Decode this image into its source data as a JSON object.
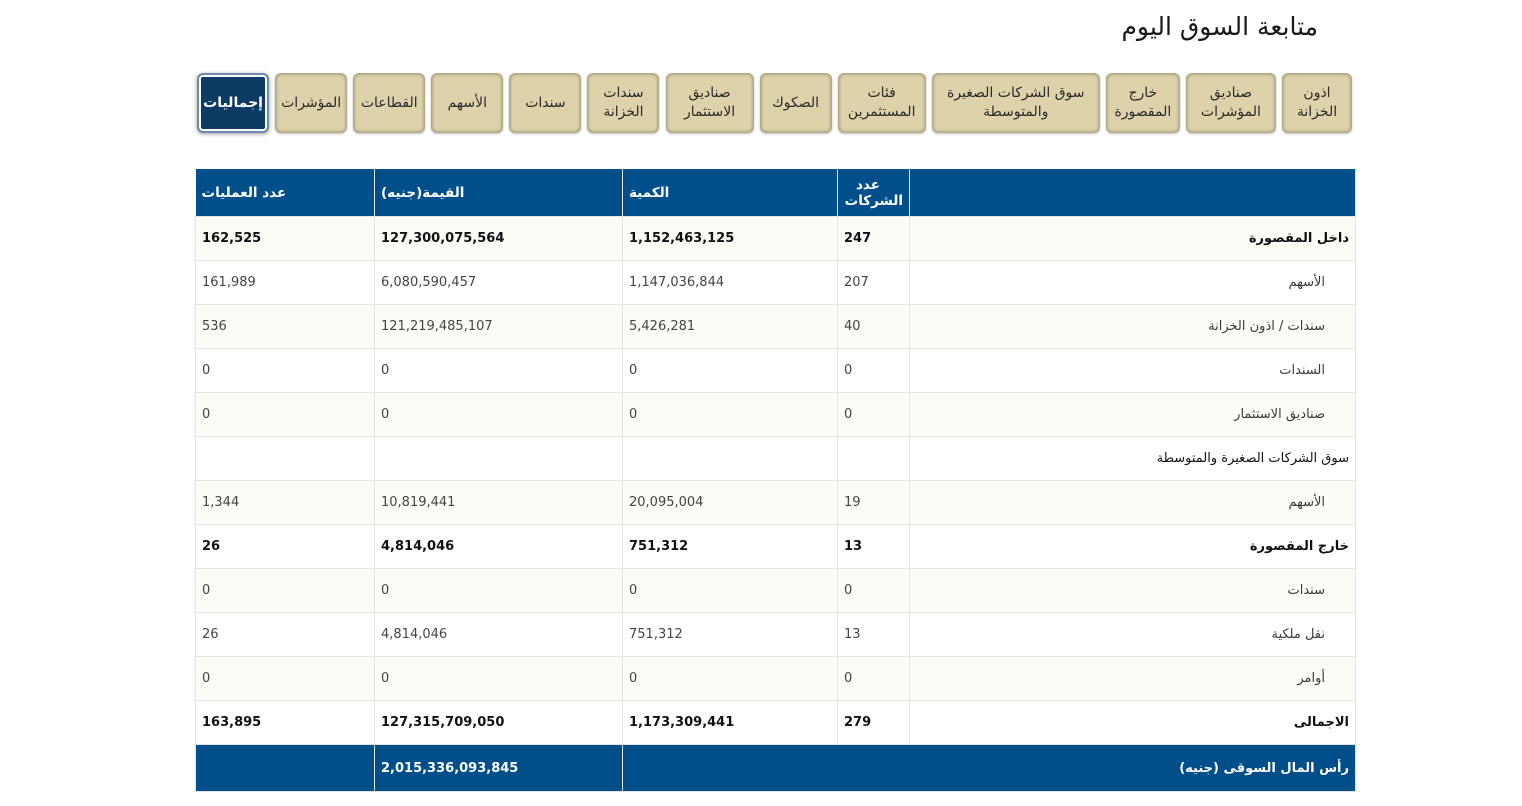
{
  "page": {
    "title": "متابعة السوق اليوم"
  },
  "tabs": [
    {
      "label": "إجماليات",
      "active": true
    },
    {
      "label": "المؤشرات"
    },
    {
      "label": "القطاعات"
    },
    {
      "label": "الأسهم"
    },
    {
      "label": "سندات"
    },
    {
      "label": "سندات الخزانة"
    },
    {
      "label": "صناديق الاستثمار"
    },
    {
      "label": "الصكوك"
    },
    {
      "label": "فئات المستثمرين"
    },
    {
      "label": "سوق الشركات الصغيرة والمتوسطة"
    },
    {
      "label": "خارج المقصورة"
    },
    {
      "label": "صناديق المؤشرات"
    },
    {
      "label": "اذون الخزانة"
    }
  ],
  "table": {
    "headers": {
      "category": "",
      "companies": "عدد الشركات",
      "quantity": "الكمية",
      "value": "القيمة(جنيه)",
      "trades": "عدد العمليات"
    },
    "rows": [
      {
        "label": "داخل المقصورة",
        "companies": "247",
        "quantity": "1,152,463,125",
        "value": "127,300,075,564",
        "trades": "162,525"
      },
      {
        "label": "الأسهم",
        "companies": "207",
        "quantity": "1,147,036,844",
        "value": "6,080,590,457",
        "trades": "161,989"
      },
      {
        "label": "سندات / اذون الخزانة",
        "companies": "40",
        "quantity": "5,426,281",
        "value": "121,219,485,107",
        "trades": "536"
      },
      {
        "label": "السندات",
        "companies": "0",
        "quantity": "0",
        "value": "0",
        "trades": "0"
      },
      {
        "label": "صناديق الاستثمار",
        "companies": "0",
        "quantity": "0",
        "value": "0",
        "trades": "0"
      },
      {
        "label": "سوق الشركات الصغيرة والمتوسطة",
        "companies": "",
        "quantity": "",
        "value": "",
        "trades": ""
      },
      {
        "label": "الأسهم",
        "companies": "19",
        "quantity": "20,095,004",
        "value": "10,819,441",
        "trades": "1,344"
      },
      {
        "label": "خارج المقصورة",
        "companies": "13",
        "quantity": "751,312",
        "value": "4,814,046",
        "trades": "26"
      },
      {
        "label": "سندات",
        "companies": "0",
        "quantity": "0",
        "value": "0",
        "trades": "0"
      },
      {
        "label": "نقل ملكية",
        "companies": "13",
        "quantity": "751,312",
        "value": "4,814,046",
        "trades": "26"
      },
      {
        "label": "أوامر",
        "companies": "0",
        "quantity": "0",
        "value": "0",
        "trades": "0"
      },
      {
        "label": "الاجمالى",
        "companies": "279",
        "quantity": "1,173,309,441",
        "value": "127,315,709,050",
        "trades": "163,895"
      }
    ],
    "market_cap": {
      "label": "رأس المال السوقى (جنيه)",
      "value": "2,015,336,093,845"
    }
  }
}
